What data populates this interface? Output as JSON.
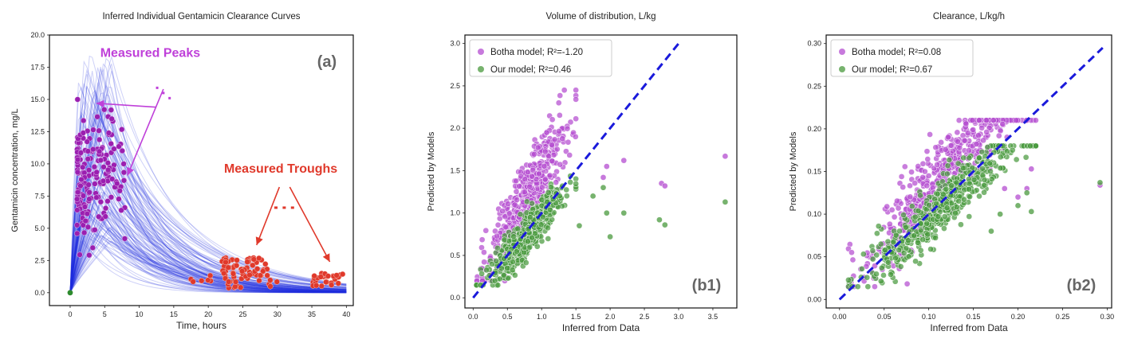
{
  "chart_data": [
    {
      "id": "a",
      "type": "line",
      "title": "Inferred Individual Gentamicin Clearance Curves",
      "xlabel": "Time, hours",
      "ylabel": "Gentamicin concentration, mg/L",
      "xlim": [
        -3,
        41
      ],
      "ylim": [
        -1,
        20
      ],
      "xticks": [
        0,
        5,
        10,
        15,
        20,
        25,
        30,
        35,
        40
      ],
      "yticks": [
        0.0,
        2.5,
        5.0,
        7.5,
        10.0,
        12.5,
        15.0,
        17.5,
        20.0
      ],
      "grid": false,
      "panel_label": "(a)",
      "annotations": [
        {
          "text": "Measured Peaks",
          "color": "#bf40d9",
          "x": 11.6,
          "y": 18.3
        },
        {
          "text": "Measured Troughs",
          "color": "#e0392b",
          "x": 30.5,
          "y": 9.3
        }
      ],
      "series": [
        {
          "color": "#1f2fe0",
          "style": "thin translucent curves"
        },
        {
          "color": "#9b1fb0",
          "style": "peak points"
        },
        {
          "color": "#e0392b",
          "style": "trough points"
        },
        {
          "color": "#2e8b2e",
          "style": "origin point"
        }
      ],
      "curves": {
        "count": 130,
        "peak_time_range": [
          1.0,
          6.0
        ],
        "peak_concentration_range": [
          4.0,
          19.0
        ],
        "half_life_range_hours": [
          3.0,
          9.0
        ],
        "x_range": [
          0,
          40
        ]
      },
      "points": {
        "origin": [
          0,
          0
        ],
        "peaks": {
          "count": 180,
          "x_range": [
            1.0,
            8.0
          ],
          "y_range": [
            2.5,
            15.0
          ]
        },
        "troughs": {
          "count": 110,
          "clusters": [
            {
              "x_range": [
                22,
                29
              ],
              "y_range": [
                0.3,
                2.8
              ]
            },
            {
              "x_range": [
                35,
                39.5
              ],
              "y_range": [
                0.5,
                1.5
              ]
            },
            {
              "x_range": [
                16.5,
                35
              ],
              "y_range": [
                0.8,
                1.6
              ]
            }
          ]
        }
      }
    },
    {
      "id": "b1",
      "type": "scatter",
      "title": "Volume of distribution, L/kg",
      "xlabel": "Inferred from Data",
      "ylabel": "Predicted by Models",
      "xlim": [
        -0.12,
        3.85
      ],
      "ylim": [
        -0.12,
        3.1
      ],
      "xticks": [
        0.0,
        0.5,
        1.0,
        1.5,
        2.0,
        2.5,
        3.0,
        3.5
      ],
      "yticks": [
        0.0,
        0.5,
        1.0,
        1.5,
        2.0,
        2.5,
        3.0
      ],
      "grid": false,
      "legend_position": "top-left",
      "panel_label": "(b1)",
      "identity_line": {
        "from": [
          0,
          0
        ],
        "to": [
          3.0,
          3.0
        ],
        "color": "#1a1adb"
      },
      "series": [
        {
          "name": "Botha model; R²=-1.20",
          "color": "#b44cd0",
          "count": 520,
          "x_range": [
            0.05,
            1.5
          ],
          "y_range": [
            0.2,
            2.45
          ],
          "slope": 1.4,
          "spread": 0.22,
          "outliers": [
            [
              3.68,
              1.67
            ],
            [
              2.75,
              1.35
            ],
            [
              2.8,
              1.32
            ],
            [
              2.2,
              1.62
            ],
            [
              1.95,
              1.55
            ],
            [
              1.9,
              1.42
            ]
          ]
        },
        {
          "name": "Our model; R²=0.46",
          "color": "#4a9a3e",
          "count": 520,
          "x_range": [
            0.05,
            1.5
          ],
          "y_range": [
            0.15,
            1.65
          ],
          "slope": 0.95,
          "spread": 0.13,
          "outliers": [
            [
              3.68,
              1.13
            ],
            [
              2.72,
              0.92
            ],
            [
              2.8,
              0.86
            ],
            [
              2.2,
              1.0
            ],
            [
              2.0,
              0.72
            ],
            [
              1.95,
              1.0
            ],
            [
              1.9,
              1.3
            ],
            [
              1.75,
              1.2
            ],
            [
              1.55,
              0.85
            ]
          ]
        }
      ]
    },
    {
      "id": "b2",
      "type": "scatter",
      "title": "Clearance, L/kg/h",
      "xlabel": "Inferred from Data",
      "ylabel": "Predicted by Models",
      "xlim": [
        -0.015,
        0.305
      ],
      "ylim": [
        -0.01,
        0.31
      ],
      "xticks": [
        0.0,
        0.05,
        0.1,
        0.15,
        0.2,
        0.25,
        0.3
      ],
      "yticks": [
        0.0,
        0.05,
        0.1,
        0.15,
        0.2,
        0.25,
        0.3
      ],
      "grid": false,
      "legend_position": "top-left",
      "panel_label": "(b2)",
      "identity_line": {
        "from": [
          0,
          0
        ],
        "to": [
          0.295,
          0.295
        ],
        "color": "#1a1adb"
      },
      "series": [
        {
          "name": "Botha model; R²=0.08",
          "color": "#b44cd0",
          "count": 520,
          "x_range": [
            0.01,
            0.22
          ],
          "y_range": [
            0.015,
            0.21
          ],
          "slope": 1.2,
          "spread": 0.022,
          "outliers": [
            [
              0.292,
              0.134
            ],
            [
              0.215,
              0.153
            ],
            [
              0.21,
              0.13
            ],
            [
              0.2,
              0.12
            ],
            [
              0.185,
              0.13
            ]
          ]
        },
        {
          "name": "Our model; R²=0.67",
          "color": "#4a9a3e",
          "count": 520,
          "x_range": [
            0.01,
            0.22
          ],
          "y_range": [
            0.015,
            0.18
          ],
          "slope": 0.95,
          "spread": 0.016,
          "outliers": [
            [
              0.292,
              0.137
            ],
            [
              0.215,
              0.103
            ],
            [
              0.21,
              0.125
            ],
            [
              0.2,
              0.11
            ],
            [
              0.18,
              0.1
            ],
            [
              0.17,
              0.08
            ]
          ]
        }
      ]
    }
  ]
}
